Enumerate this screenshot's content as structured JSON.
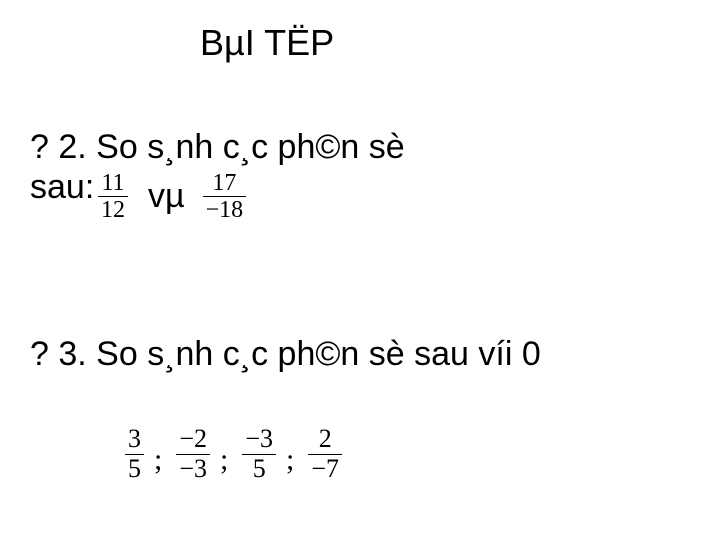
{
  "title": "BµI TËP",
  "q2": {
    "prefix": "? 2. So s¸nh c¸c ph©n sè",
    "suffix": "sau:",
    "frac1": {
      "num": "11",
      "den": "12"
    },
    "connector": "vµ",
    "frac2": {
      "num": "17",
      "den": "−18"
    }
  },
  "q3": {
    "text": "? 3. So s¸nh c¸c ph©n sè sau víi 0",
    "fracs": [
      {
        "num": "3",
        "den": "5"
      },
      {
        "num": "−2",
        "den": "−3"
      },
      {
        "num": "−3",
        "den": "5"
      },
      {
        "num": "2",
        "den": "−7"
      }
    ],
    "separator": ";"
  },
  "style": {
    "text_color": "#000000",
    "background": "#ffffff",
    "title_fontsize": 36,
    "body_fontsize": 34,
    "frac_q2_fontsize": 24,
    "frac_q3_fontsize": 26,
    "font_family_body": "Arial",
    "font_family_math": "Times New Roman"
  }
}
